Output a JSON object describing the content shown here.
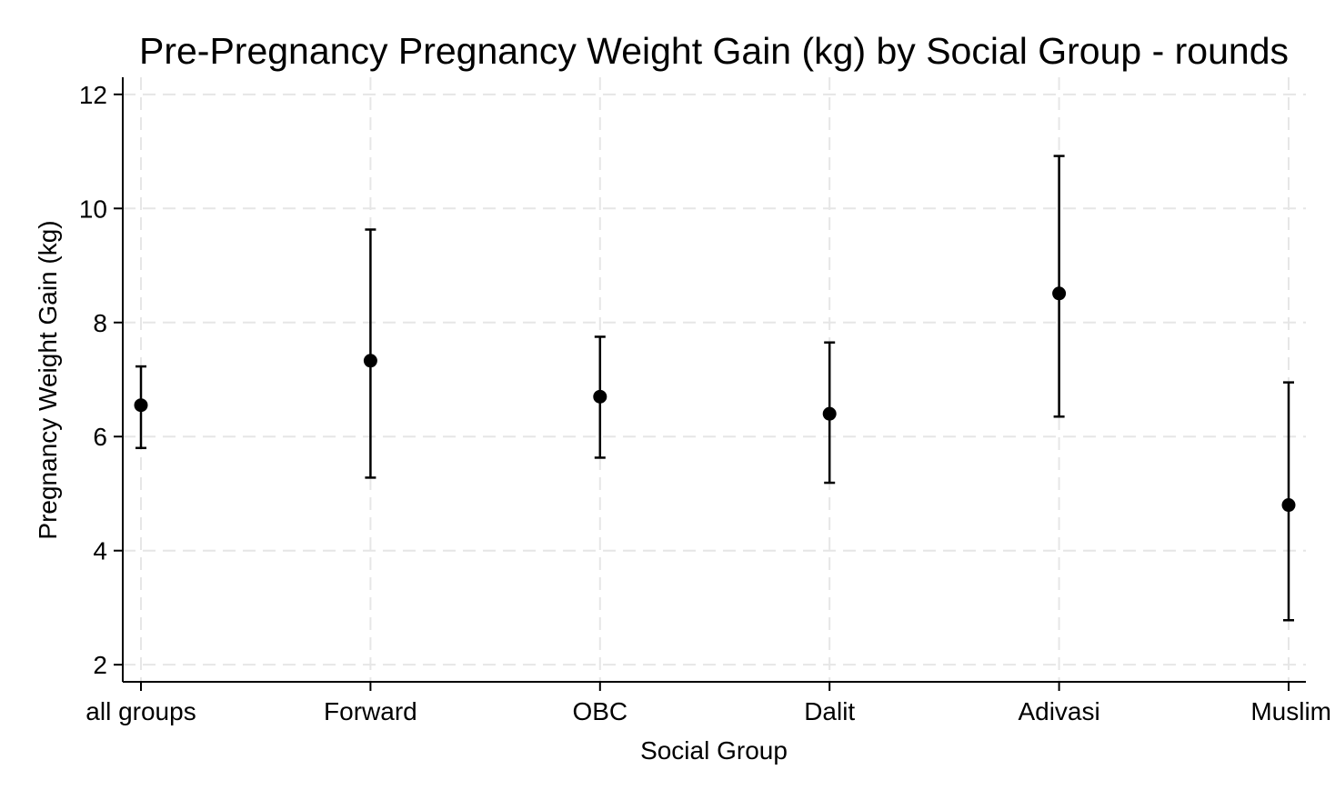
{
  "chart_data": {
    "type": "scatter",
    "subtype": "point-with-error-bars",
    "title": "Pre-Pregnancy Pregnancy Weight Gain (kg) by Social Group - rounds",
    "xlabel": "Social Group",
    "ylabel": "Pregnancy Weight Gain (kg)",
    "categories": [
      "all groups",
      "Forward",
      "OBC",
      "Dalit",
      "Adivasi",
      "Muslim"
    ],
    "series": [
      {
        "values": [
          6.55,
          7.33,
          6.7,
          6.4,
          8.51,
          4.8
        ],
        "lower": [
          5.8,
          5.28,
          5.63,
          5.19,
          6.35,
          2.78
        ],
        "upper": [
          7.23,
          9.63,
          7.75,
          7.65,
          10.92,
          6.95
        ]
      }
    ],
    "ylim": [
      1.7,
      12.3
    ],
    "yticks": [
      2,
      4,
      6,
      8,
      10,
      12
    ],
    "grid": true,
    "legend": "none"
  }
}
